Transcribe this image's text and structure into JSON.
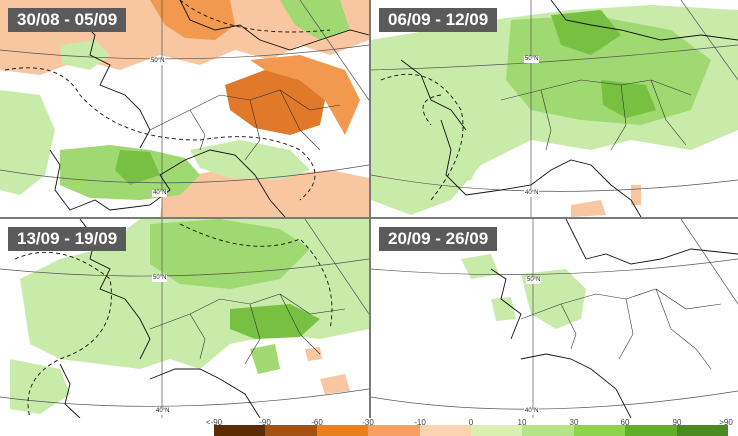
{
  "panels": [
    {
      "title": "30/08 - 05/09",
      "lat_50": "50°N",
      "lat_40": "40°N"
    },
    {
      "title": "06/09 - 12/09",
      "lat_50": "50°N",
      "lat_40": "40°N"
    },
    {
      "title": "13/09 - 19/09",
      "lat_50": "50°N",
      "lat_40": "40°N"
    },
    {
      "title": "20/09 - 26/09",
      "lat_50": "50°N",
      "lat_40": "40°N"
    }
  ],
  "legend": {
    "ticks": [
      "<-90",
      "-90",
      "-60",
      "-30",
      "-10",
      "0",
      "10",
      "30",
      "60",
      "90",
      ">90"
    ],
    "colors": [
      "#5a2c00",
      "#a35214",
      "#e8801e",
      "#f7a066",
      "#fbd3b1",
      "#d9f0b0",
      "#b5e486",
      "#8dd34c",
      "#62ad2c",
      "#4b8a20"
    ]
  },
  "map_colors": {
    "light_green": "#c8ebaa",
    "mid_green": "#a0d872",
    "dark_green": "#78c042",
    "light_orange": "#f8c7a1",
    "mid_orange": "#f2994f",
    "dark_orange": "#e0792a"
  }
}
